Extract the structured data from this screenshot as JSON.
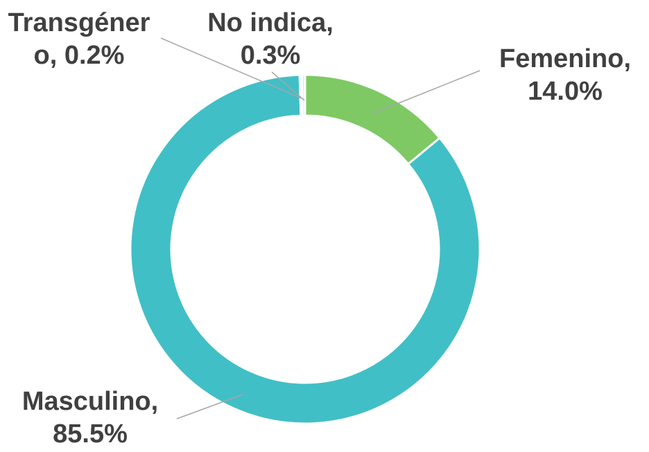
{
  "chart_data": {
    "type": "donut",
    "categories": [
      "Femenino",
      "Masculino",
      "Transgénero",
      "No indica"
    ],
    "values": [
      14.0,
      85.5,
      0.2,
      0.3
    ],
    "value_labels": [
      "14.0%",
      "85.5%",
      "0.2%",
      "0.3%"
    ],
    "separator": ",",
    "colors": [
      "#7ec964",
      "#41bfc6",
      "#3aa9b0",
      "#d6eef0"
    ]
  }
}
